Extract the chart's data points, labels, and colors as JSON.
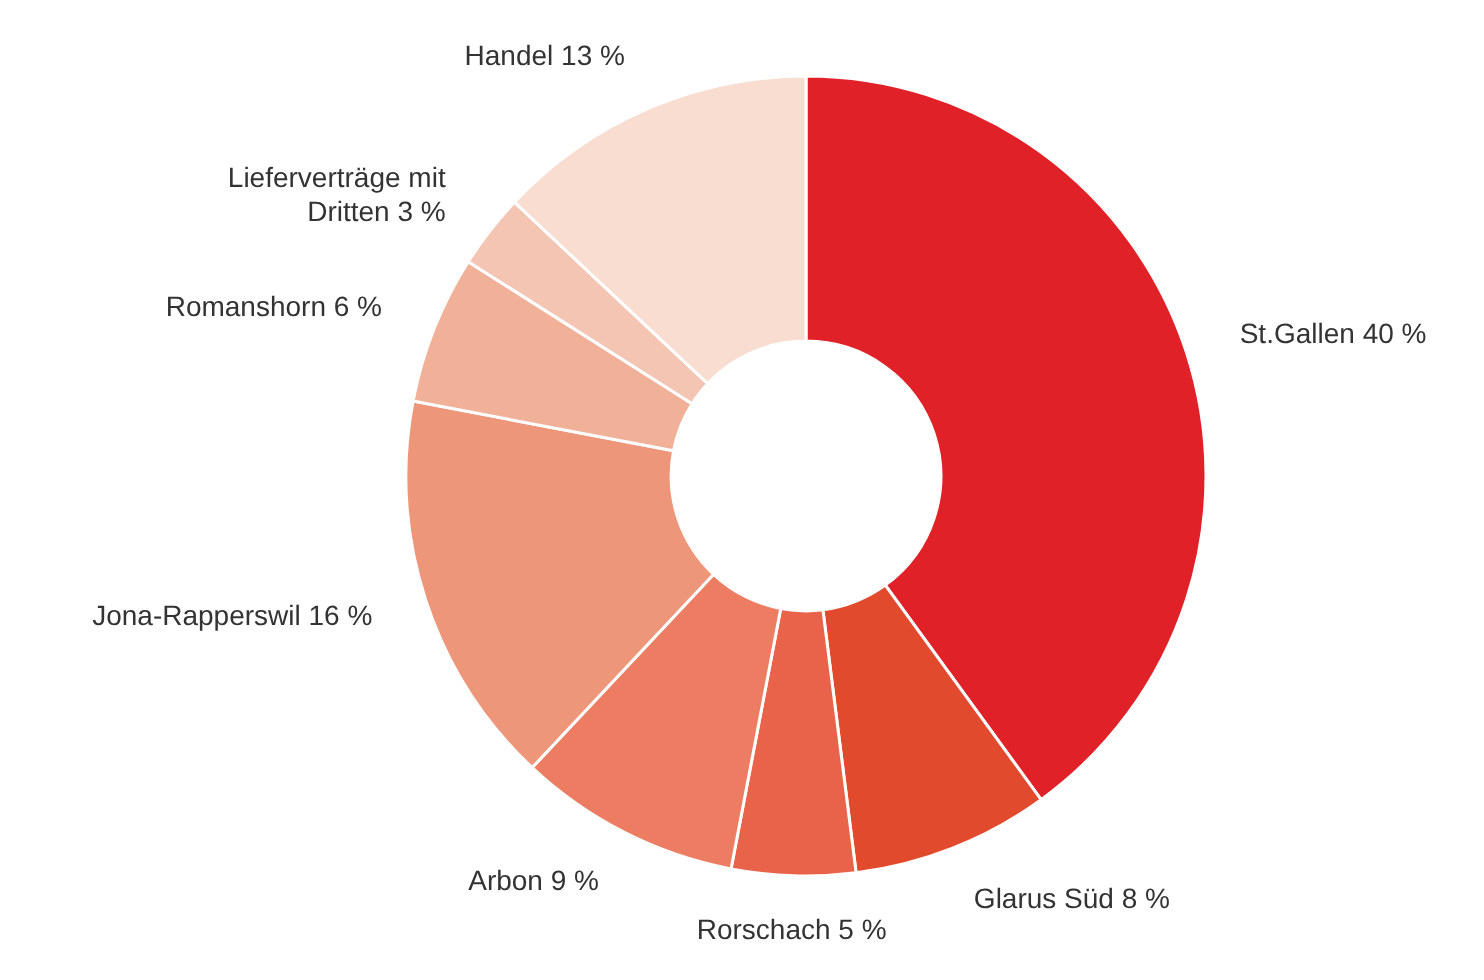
{
  "chart_data": {
    "type": "donut",
    "categories": [
      "St.Gallen",
      "Glarus Süd",
      "Rorschach",
      "Arbon",
      "Jona-Rapperswil",
      "Romanshorn",
      "Lieferverträge mit Dritten",
      "Handel"
    ],
    "values": [
      40,
      8,
      5,
      9,
      16,
      6,
      3,
      13
    ],
    "value_labels": [
      "40 %",
      "8 %",
      "5 %",
      "9 %",
      "16 %",
      "6 %",
      "3 %",
      "13 %"
    ],
    "colors": [
      "#e02228",
      "#e24a2e",
      "#e8634a",
      "#ec7d62",
      "#ee967a",
      "#f0b198",
      "#f4c5b3",
      "#f9ddd1"
    ]
  }
}
